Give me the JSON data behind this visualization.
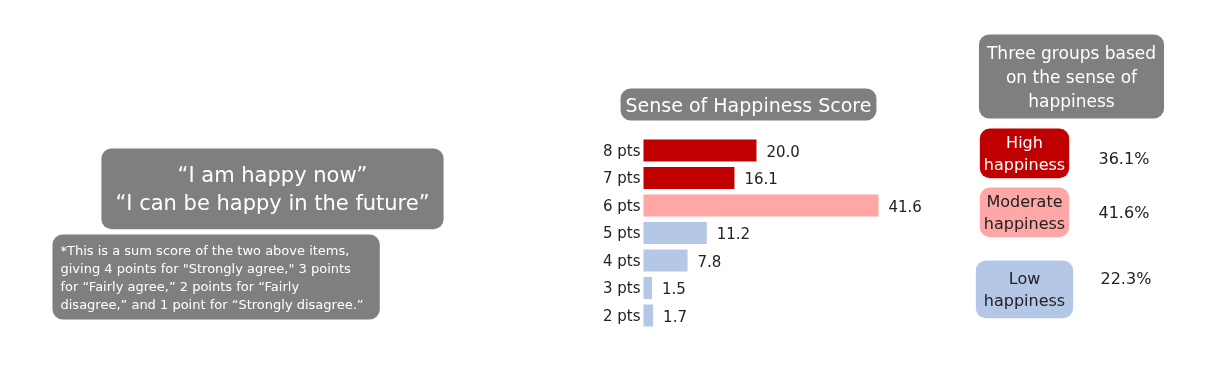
{
  "chart_data": {
    "type": "bar",
    "orientation": "horizontal",
    "title": "Sense of Happiness Score",
    "categories": [
      "8 pts",
      "7 pts",
      "6 pts",
      "5 pts",
      "4 pts",
      "3 pts",
      "2 pts"
    ],
    "values": [
      20.0,
      16.1,
      41.6,
      11.2,
      7.8,
      1.5,
      1.7
    ],
    "value_labels": [
      "20.0",
      "16.1",
      "41.6",
      "11.2",
      "7.8",
      "1.5",
      "1.7"
    ],
    "colors": [
      "#c00000",
      "#c00000",
      "#ffa6a6",
      "#b4c7e7",
      "#b4c7e7",
      "#b4c7e7",
      "#b4c7e7"
    ],
    "grid": false,
    "annotations": [
      "“I am happy now”\n“I can be happy in the future”",
      "*This is a sum score of the two above items,\n  giving 4 points for \"Strongly agree,\" 3 points\n  for “Fairly agree,” 2 points for “Fairly\n  disagree,” and 1 point for “Strongly disagree.”",
      "Three groups based\non the sense of\nhappiness",
      "High\nhappiness",
      "36.1%",
      "Moderate\nhappiness",
      "41.6%",
      "Low\nhappiness",
      "22.3%"
    ]
  }
}
